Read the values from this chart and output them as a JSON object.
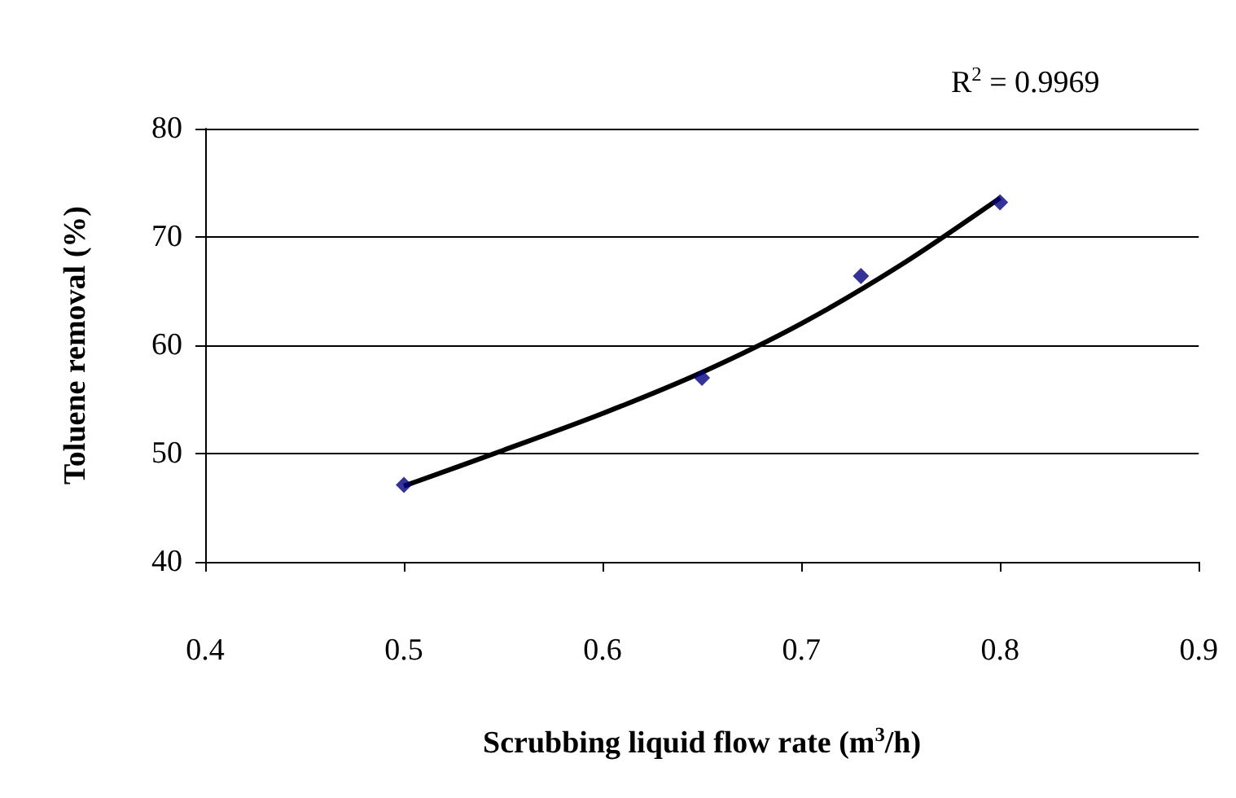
{
  "chart_data": {
    "type": "scatter",
    "xlabel": "Scrubbing liquid flow rate (m$^{3}$/h)",
    "ylabel": "Toluene removal (%)",
    "xlim": [
      0.4,
      0.9
    ],
    "xticks": [
      0.4,
      0.5,
      0.6,
      0.7,
      0.8,
      0.9
    ],
    "ylim": [
      40,
      80
    ],
    "yticks": [
      40,
      50,
      60,
      70,
      80
    ],
    "grid": "y",
    "series": [
      {
        "color": "#000080",
        "marker": "diamond",
        "x": [
          0.5,
          0.65,
          0.73,
          0.8
        ],
        "values": [
          47.1,
          57.0,
          66.4,
          73.2
        ]
      },
      {
        "type": "line",
        "color": "#000000",
        "marker": "none",
        "x": [
          0.5,
          0.55,
          0.6,
          0.65,
          0.7,
          0.75,
          0.8
        ],
        "values": [
          47.0,
          50.3,
          53.7,
          57.5,
          62.0,
          67.4,
          73.6
        ]
      }
    ],
    "annotations": [
      "R$^{2}$ = 0.9969"
    ]
  }
}
